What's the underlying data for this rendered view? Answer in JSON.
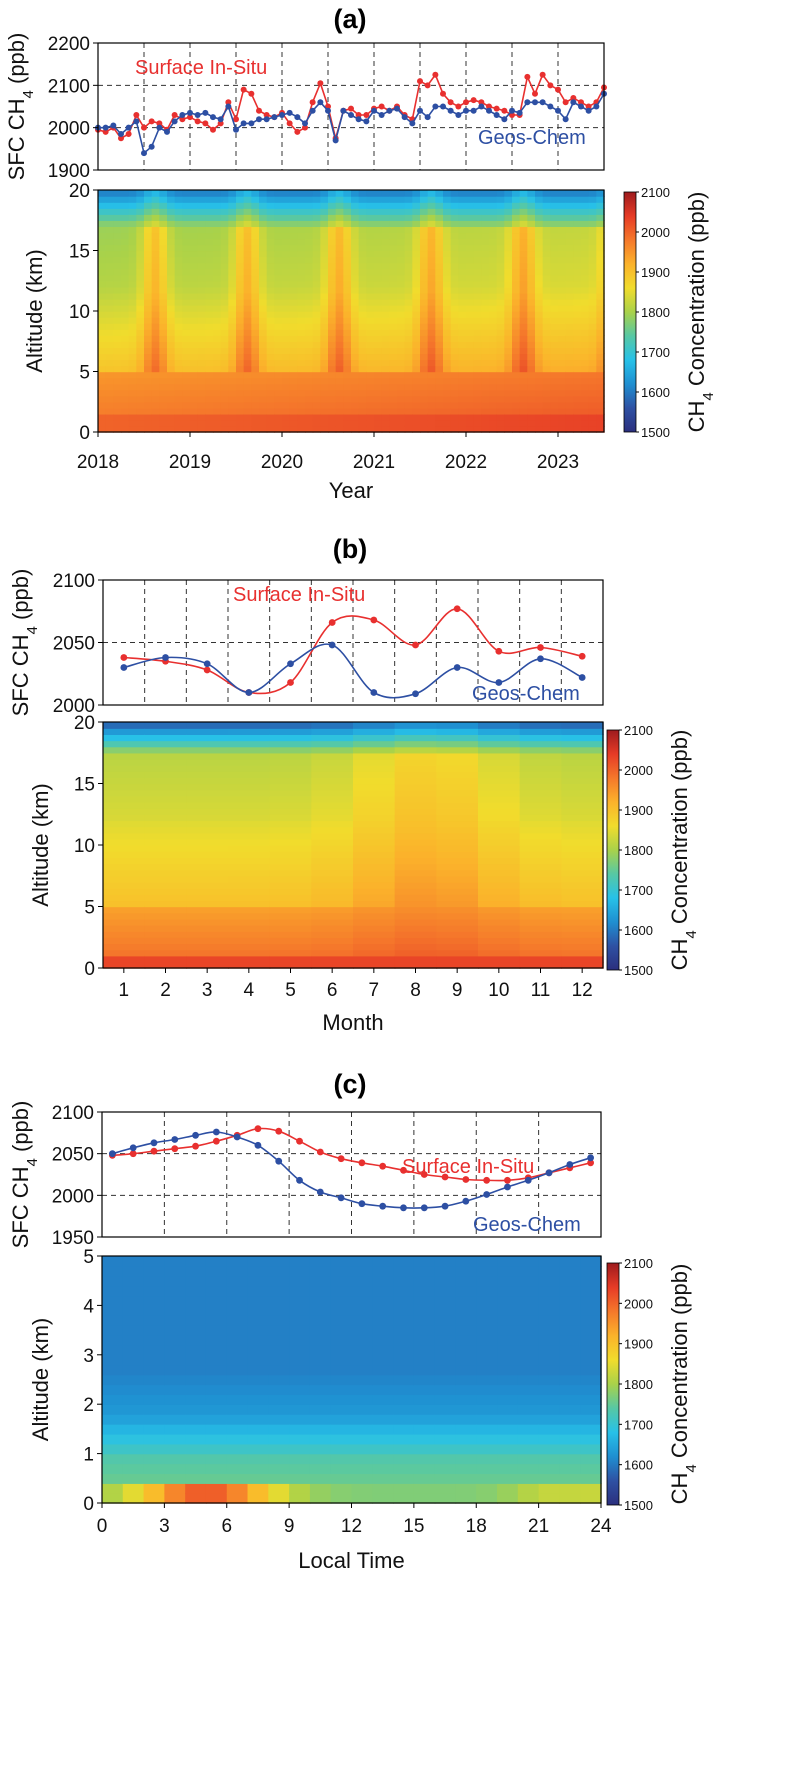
{
  "chart_data": [
    {
      "panel_label": "(a)",
      "type": "line",
      "ylabel_main": "SFC CH",
      "ylabel_sub": "4",
      "ylabel_unit": " (ppb)",
      "ylim": [
        1900,
        2200
      ],
      "yticks": [
        "1900",
        "2000",
        "2100",
        "2200"
      ],
      "xlim": [
        2018,
        2023.5
      ],
      "series": [
        {
          "name": "Surface In-Situ",
          "color": "#e8302f",
          "x": [
            2018.0,
            2018.083,
            2018.167,
            2018.25,
            2018.333,
            2018.417,
            2018.5,
            2018.583,
            2018.667,
            2018.75,
            2018.833,
            2018.917,
            2019.0,
            2019.083,
            2019.167,
            2019.25,
            2019.333,
            2019.417,
            2019.5,
            2019.583,
            2019.667,
            2019.75,
            2019.833,
            2019.917,
            2020.0,
            2020.083,
            2020.167,
            2020.25,
            2020.333,
            2020.417,
            2020.5,
            2020.583,
            2020.667,
            2020.75,
            2020.833,
            2020.917,
            2021.0,
            2021.083,
            2021.167,
            2021.25,
            2021.333,
            2021.417,
            2021.5,
            2021.583,
            2021.667,
            2021.75,
            2021.833,
            2021.917,
            2022.0,
            2022.083,
            2022.167,
            2022.25,
            2022.333,
            2022.417,
            2022.5,
            2022.583,
            2022.667,
            2022.75,
            2022.833,
            2022.917,
            2023.0,
            2023.083,
            2023.167,
            2023.25,
            2023.333,
            2023.417,
            2023.5
          ],
          "values": [
            1995,
            1990,
            2000,
            1975,
            1985,
            2030,
            2000,
            2015,
            2010,
            1995,
            2030,
            2020,
            2025,
            2015,
            2010,
            1995,
            2010,
            2060,
            2020,
            2090,
            2080,
            2040,
            2030,
            2025,
            2035,
            2010,
            1990,
            2000,
            2060,
            2105,
            2050,
            1975,
            2040,
            2045,
            2030,
            2030,
            2045,
            2050,
            2040,
            2050,
            2030,
            2020,
            2110,
            2100,
            2125,
            2080,
            2060,
            2050,
            2060,
            2065,
            2060,
            2050,
            2045,
            2040,
            2030,
            2030,
            2120,
            2080,
            2125,
            2100,
            2090,
            2060,
            2070,
            2060,
            2050,
            2060,
            2095
          ]
        },
        {
          "name": "Geos-Chem",
          "color": "#2d4fa3",
          "x": [
            2018.0,
            2018.083,
            2018.167,
            2018.25,
            2018.333,
            2018.417,
            2018.5,
            2018.583,
            2018.667,
            2018.75,
            2018.833,
            2018.917,
            2019.0,
            2019.083,
            2019.167,
            2019.25,
            2019.333,
            2019.417,
            2019.5,
            2019.583,
            2019.667,
            2019.75,
            2019.833,
            2019.917,
            2020.0,
            2020.083,
            2020.167,
            2020.25,
            2020.333,
            2020.417,
            2020.5,
            2020.583,
            2020.667,
            2020.75,
            2020.833,
            2020.917,
            2021.0,
            2021.083,
            2021.167,
            2021.25,
            2021.333,
            2021.417,
            2021.5,
            2021.583,
            2021.667,
            2021.75,
            2021.833,
            2021.917,
            2022.0,
            2022.083,
            2022.167,
            2022.25,
            2022.333,
            2022.417,
            2022.5,
            2022.583,
            2022.667,
            2022.75,
            2022.833,
            2022.917,
            2023.0,
            2023.083,
            2023.167,
            2023.25,
            2023.333,
            2023.417,
            2023.5
          ],
          "values": [
            2000,
            2000,
            2005,
            1985,
            2000,
            2015,
            1940,
            1955,
            2000,
            1990,
            2015,
            2030,
            2035,
            2030,
            2035,
            2025,
            2020,
            2050,
            1995,
            2010,
            2010,
            2020,
            2020,
            2025,
            2030,
            2035,
            2025,
            2010,
            2040,
            2060,
            2040,
            1970,
            2040,
            2030,
            2020,
            2015,
            2040,
            2030,
            2040,
            2045,
            2025,
            2010,
            2040,
            2025,
            2050,
            2050,
            2040,
            2030,
            2040,
            2040,
            2050,
            2040,
            2030,
            2020,
            2040,
            2035,
            2060,
            2060,
            2060,
            2050,
            2040,
            2020,
            2060,
            2050,
            2040,
            2050,
            2080
          ]
        }
      ],
      "ylabel_map": "Altitude (km)",
      "xlabel": "Year",
      "xticks": [
        "2018",
        "2019",
        "2020",
        "2021",
        "2022",
        "2023"
      ],
      "altitude_ticks": [
        "0",
        "5",
        "10",
        "15",
        "20"
      ],
      "colorbar_label": "CH4 Concentration (ppb)",
      "colorbar_ticks": [
        "1500",
        "1600",
        "1700",
        "1800",
        "1900",
        "2000",
        "2100"
      ]
    },
    {
      "panel_label": "(b)",
      "type": "line",
      "ylabel_main": "SFC CH",
      "ylabel_sub": "4",
      "ylabel_unit": " (ppb)",
      "ylim": [
        2000,
        2100
      ],
      "yticks": [
        "2000",
        "2050",
        "2100"
      ],
      "xlim": [
        0.5,
        12.5
      ],
      "series": [
        {
          "name": "Surface In-Situ",
          "color": "#e8302f",
          "x": [
            1,
            2,
            3,
            4,
            5,
            6,
            7,
            8,
            9,
            10,
            11,
            12
          ],
          "values": [
            2038,
            2035,
            2028,
            2010,
            2018,
            2066,
            2068,
            2048,
            2077,
            2043,
            2046,
            2039
          ]
        },
        {
          "name": "Geos-Chem",
          "color": "#2d4fa3",
          "x": [
            1,
            2,
            3,
            4,
            5,
            6,
            7,
            8,
            9,
            10,
            11,
            12
          ],
          "values": [
            2030,
            2038,
            2033,
            2010,
            2033,
            2048,
            2010,
            2009,
            2030,
            2018,
            2037,
            2022
          ]
        }
      ],
      "ylabel_map": "Altitude (km)",
      "xlabel": "Month",
      "xticks": [
        "1",
        "2",
        "3",
        "4",
        "5",
        "6",
        "7",
        "8",
        "9",
        "10",
        "11",
        "12"
      ],
      "altitude_ticks": [
        "0",
        "5",
        "10",
        "15",
        "20"
      ],
      "colorbar_label": "CH4 Concentration (ppb)",
      "colorbar_ticks": [
        "1500",
        "1600",
        "1700",
        "1800",
        "1900",
        "2000",
        "2100"
      ]
    },
    {
      "panel_label": "(c)",
      "type": "line",
      "ylabel_main": "SFC CH",
      "ylabel_sub": "4",
      "ylabel_unit": " (ppb)",
      "ylim": [
        1950,
        2100
      ],
      "yticks": [
        "1950",
        "2000",
        "2050",
        "2100"
      ],
      "xlim": [
        0,
        24
      ],
      "series": [
        {
          "name": "Surface In-Situ",
          "color": "#e8302f",
          "x": [
            0.5,
            1.5,
            2.5,
            3.5,
            4.5,
            5.5,
            6.5,
            7.5,
            8.5,
            9.5,
            10.5,
            11.5,
            12.5,
            13.5,
            14.5,
            15.5,
            16.5,
            17.5,
            18.5,
            19.5,
            20.5,
            21.5,
            22.5,
            23.5
          ],
          "values": [
            2048,
            2050,
            2053,
            2056,
            2059,
            2065,
            2072,
            2080,
            2077,
            2065,
            2052,
            2044,
            2039,
            2035,
            2030,
            2025,
            2022,
            2019,
            2018,
            2018,
            2021,
            2027,
            2033,
            2039
          ]
        },
        {
          "name": "Geos-Chem",
          "color": "#2d4fa3",
          "x": [
            0.5,
            1.5,
            2.5,
            3.5,
            4.5,
            5.5,
            6.5,
            7.5,
            8.5,
            9.5,
            10.5,
            11.5,
            12.5,
            13.5,
            14.5,
            15.5,
            16.5,
            17.5,
            18.5,
            19.5,
            20.5,
            21.5,
            22.5,
            23.5
          ],
          "values": [
            2050,
            2057,
            2063,
            2067,
            2072,
            2076,
            2070,
            2060,
            2041,
            2018,
            2004,
            1997,
            1990,
            1987,
            1985,
            1985,
            1987,
            1993,
            2001,
            2010,
            2018,
            2027,
            2037,
            2045
          ]
        }
      ],
      "ylabel_map": "Altitude (km)",
      "xlabel": "Local Time",
      "xticks": [
        "0",
        "3",
        "6",
        "9",
        "12",
        "15",
        "18",
        "21",
        "24"
      ],
      "altitude_ticks": [
        "0",
        "1",
        "2",
        "3",
        "4",
        "5"
      ],
      "colorbar_label": "CH4 Concentration (ppb)",
      "colorbar_ticks": [
        "1500",
        "1600",
        "1700",
        "1800",
        "1900",
        "2000",
        "2100"
      ]
    }
  ],
  "colorscale": [
    "#2b2f7e",
    "#2e51a3",
    "#1f8fd1",
    "#27c1e8",
    "#57c8a4",
    "#a9d24a",
    "#f1dc2c",
    "#fbb22b",
    "#f5782b",
    "#e63b26",
    "#9e1b1e"
  ]
}
